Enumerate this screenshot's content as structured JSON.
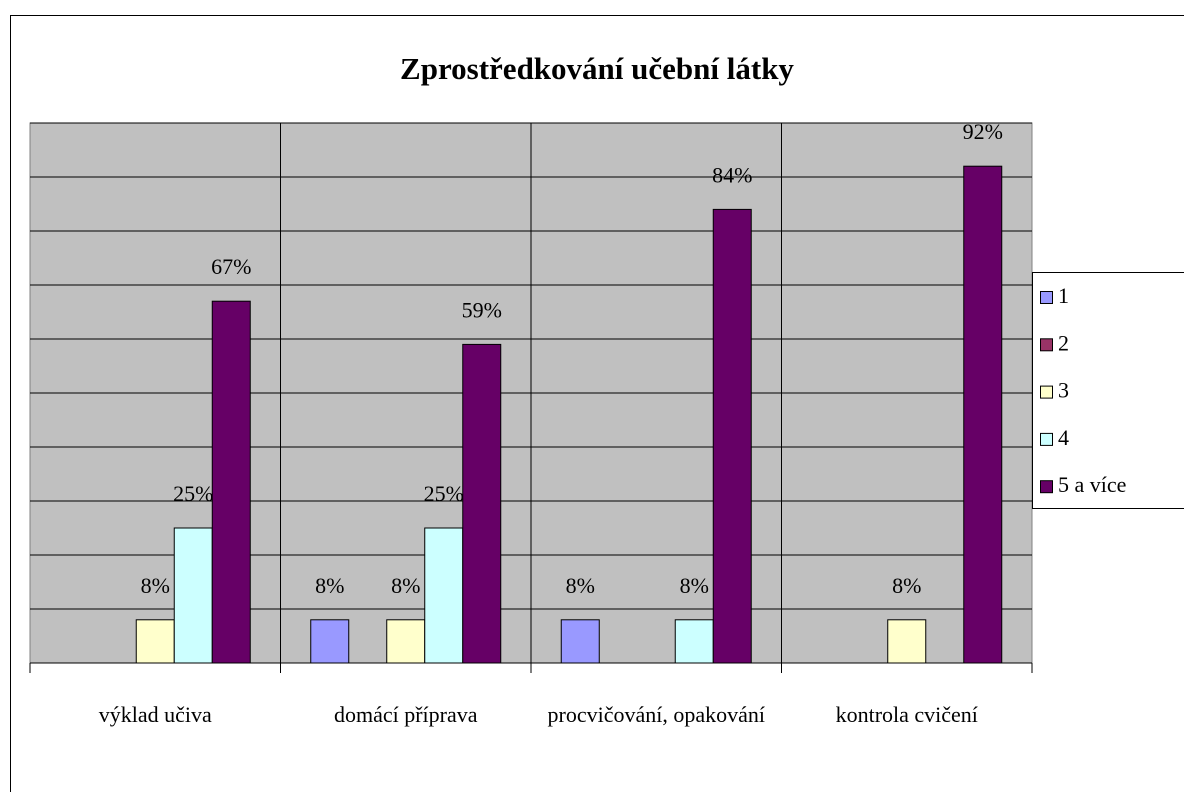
{
  "chart_data": {
    "type": "bar",
    "title": "Zprostředkování učební látky",
    "categories": [
      "výklad učiva",
      "domácí příprava",
      "procvičování, opakování",
      "kontrola cvičení"
    ],
    "series": [
      {
        "name": "1",
        "color": "#9999ff",
        "values": [
          null,
          8,
          8,
          null
        ],
        "value_labels": [
          null,
          "8%",
          "8%",
          null
        ]
      },
      {
        "name": "2",
        "color": "#993366",
        "values": [
          null,
          null,
          null,
          null
        ],
        "value_labels": [
          null,
          null,
          null,
          null
        ]
      },
      {
        "name": "3",
        "color": "#ffffcc",
        "values": [
          8,
          8,
          null,
          8
        ],
        "value_labels": [
          "8%",
          "8%",
          null,
          "8%"
        ]
      },
      {
        "name": "4",
        "color": "#ccffff",
        "values": [
          25,
          25,
          8,
          null
        ],
        "value_labels": [
          "25%",
          "25%",
          "8%",
          null
        ]
      },
      {
        "name": "5 a více",
        "color": "#660066",
        "values": [
          67,
          59,
          84,
          92
        ],
        "value_labels": [
          "67%",
          "59%",
          "84%",
          "92%"
        ]
      }
    ],
    "ylim": [
      0,
      100
    ],
    "yticks": [
      0,
      10,
      20,
      30,
      40,
      50,
      60,
      70,
      80,
      90,
      100
    ],
    "grid": true,
    "legend": "right"
  }
}
